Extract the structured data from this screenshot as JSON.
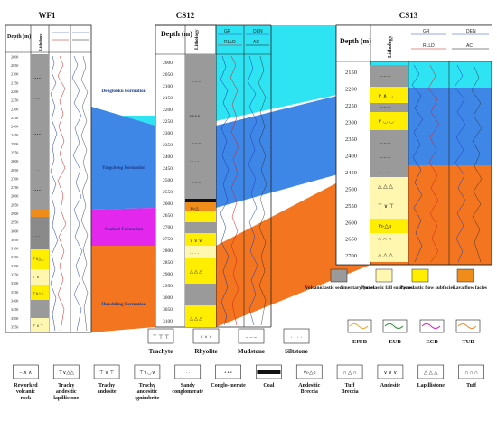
{
  "wells": [
    {
      "name": "WF1",
      "depth_header": "Depth (m)",
      "lith_header": "Lithology",
      "depth_ticks": [
        "2000",
        "2050",
        "2100",
        "2150",
        "2200",
        "2250",
        "2300",
        "2350",
        "2400",
        "2450",
        "2500",
        "2550",
        "2600",
        "2650",
        "2700",
        "2750",
        "2800",
        "2850",
        "2900",
        "2950",
        "3000",
        "3050",
        "3100",
        "3150",
        "3200",
        "3250",
        "3300",
        "3350",
        "3400",
        "3450",
        "3500",
        "3550"
      ]
    },
    {
      "name": "CS12",
      "depth_header": "Depth (m)",
      "lith_header": "Lithology",
      "log_labels": [
        "GR",
        "RLLD",
        "DEN",
        "AC"
      ],
      "depth_ticks": [
        "2000",
        "2050",
        "2100",
        "2150",
        "2200",
        "2250",
        "2300",
        "2350",
        "2400",
        "2450",
        "2500",
        "2550",
        "2600",
        "2650",
        "2700",
        "2750",
        "2800",
        "2850",
        "2900",
        "2950",
        "3000",
        "3050",
        "3100"
      ]
    },
    {
      "name": "CS13",
      "depth_header": "Depth (m)",
      "lith_header": "Lithology",
      "log_labels": [
        "GR",
        "RLLD",
        "DEN",
        "AC"
      ],
      "depth_ticks": [
        "2150",
        "2200",
        "2250",
        "2300",
        "2350",
        "2400",
        "2450",
        "2500",
        "2550",
        "2600",
        "2650",
        "2700"
      ]
    }
  ],
  "formations": [
    "Denglouku Formation",
    "Yingcheng Formation",
    "Shahezi Formation",
    "Huoshiling Formation"
  ],
  "facies_legend": [
    {
      "label": "Volcaniclastic sedimentary facies",
      "color": "#9a9a9a"
    },
    {
      "label": "Pyroclastic fall subfacies",
      "color": "#fff6b0"
    },
    {
      "label": "Pyroclastic flow subfacies",
      "color": "#ffee00"
    },
    {
      "label": "Lava flow facies",
      "color": "#f08c1a"
    }
  ],
  "unit_legend": [
    {
      "label": "EIUB",
      "color": "#f5a623"
    },
    {
      "label": "EUB",
      "color": "#2e8b3a"
    },
    {
      "label": "ECB",
      "color": "#d020c8"
    },
    {
      "label": "TUB",
      "color": "#f28a1e"
    }
  ],
  "litho_row1": [
    {
      "label": "Trachyte",
      "sym": "⊤ ⊤ ⊤"
    },
    {
      "label": "Rhyolite",
      "sym": "× × ×"
    },
    {
      "label": "Mudstone",
      "sym": "– – –"
    },
    {
      "label": "Siltstone",
      "sym": "· · · ·"
    }
  ],
  "litho_row2": [
    {
      "label": "Reworked volcanic rock",
      "sym": "~ ∧ ∧"
    },
    {
      "label": "Trachy andesitic lapillistone",
      "sym": "⊤∨△△"
    },
    {
      "label": "Trachy andesite",
      "sym": "⊤ ∨ ⊤"
    },
    {
      "label": "Trachy andesitic ignimbrite",
      "sym": "⊤∨◡∨"
    },
    {
      "label": "Sandy conglomerate",
      "sym": "·  ·"
    },
    {
      "label": "Conglo-merate",
      "sym": "• • •"
    },
    {
      "label": "Coal",
      "sym": ""
    },
    {
      "label": "Andesitic Breccia",
      "sym": "∨▹△◃"
    },
    {
      "label": "Tuff Breccia",
      "sym": "∩ △ ∩"
    },
    {
      "label": "Andesite",
      "sym": "∨ ∨ ∨"
    },
    {
      "label": "Lapillistone",
      "sym": "△ △ △"
    },
    {
      "label": "Tuff",
      "sym": "∩ ∩ ∩"
    }
  ]
}
